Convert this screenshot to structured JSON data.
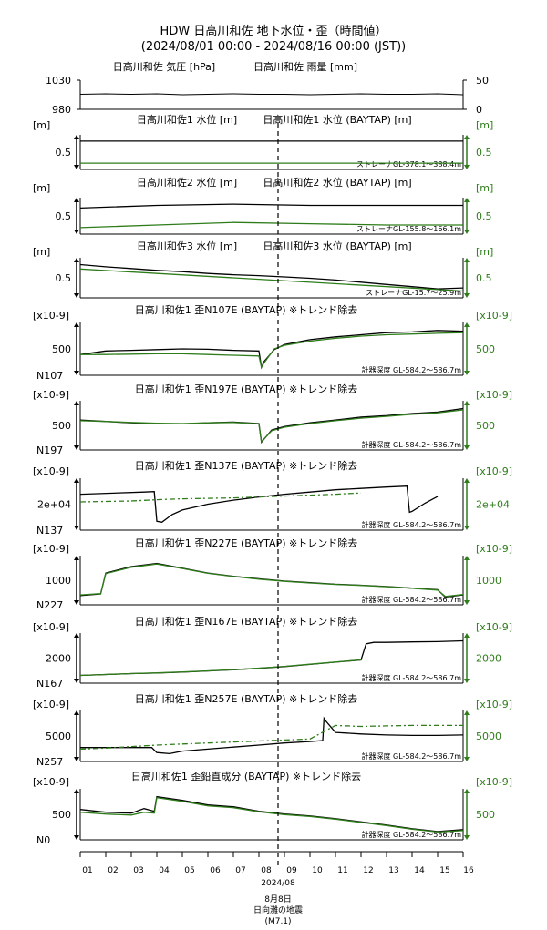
{
  "title_line1": "HDW 日高川和佐 地下水位・歪（時間値）",
  "title_line2": "(2024/08/01 00:00 - 2024/08/16 00:00 (JST))",
  "colors": {
    "observed": "#000000",
    "baytap": "#2e7d1a",
    "marker": "#000000"
  },
  "event": {
    "date_label": "8月8日",
    "name": "日向灘の地震",
    "magnitude": "(M7.1)",
    "month_label": "2024/08"
  },
  "x_axis": {
    "ticks": [
      "01",
      "02",
      "03",
      "04",
      "05",
      "06",
      "07",
      "08",
      "09",
      "10",
      "11",
      "12",
      "13",
      "14",
      "15",
      "16"
    ]
  },
  "chart_data": [
    {
      "type": "line",
      "title_left": "日高川和佐 気圧 [hPa]",
      "title_right": "日高川和佐 雨量 [mm]",
      "left_ticks": [
        "1030",
        "980"
      ],
      "right_ticks": [
        "50",
        "0"
      ],
      "ylim": [
        980,
        1030
      ],
      "series": [
        {
          "name": "日高川和佐 気圧 [hPa]",
          "kind": "pressure",
          "days": [
            0,
            1,
            2,
            3,
            4,
            5,
            6,
            7,
            8,
            9,
            10,
            11,
            12,
            13,
            14,
            15
          ],
          "values": [
            1006,
            1007,
            1006,
            1007,
            1005,
            1006,
            1007,
            1006,
            1006,
            1005,
            1006,
            1007,
            1006,
            1006,
            1007,
            1005
          ]
        }
      ]
    },
    {
      "type": "line",
      "title_left": "日高川和佐1 水位 [m]",
      "title_right": "日高川和佐1 水位 (BAYTAP) [m]",
      "left_unit": "[m]",
      "right_unit": "[m]",
      "left_tick": "0.5",
      "right_tick": "0.5",
      "note": "ストレーナGL-378.1～388.4m",
      "series": [
        {
          "kind": "observed",
          "days": [
            0,
            15
          ],
          "values": [
            0.58,
            0.58
          ]
        },
        {
          "kind": "baytap",
          "days": [
            0,
            15
          ],
          "values": [
            0.47,
            0.47
          ]
        }
      ]
    },
    {
      "type": "line",
      "title_left": "日高川和佐2 水位 [m]",
      "title_right": "日高川和佐2 水位 (BAYTAP) [m]",
      "left_unit": "[m]",
      "right_unit": "[m]",
      "left_tick": "0.5",
      "right_tick": "0.5",
      "note": "ストレーナGL-155.8～166.1m",
      "series": [
        {
          "kind": "observed",
          "days": [
            0,
            3,
            6,
            9,
            12,
            15
          ],
          "values": [
            0.58,
            0.6,
            0.61,
            0.6,
            0.6,
            0.6
          ]
        },
        {
          "kind": "baytap",
          "days": [
            0,
            3,
            6,
            9,
            12,
            15
          ],
          "values": [
            0.43,
            0.45,
            0.47,
            0.46,
            0.45,
            0.45
          ]
        }
      ]
    },
    {
      "type": "line",
      "title_left": "日高川和佐3 水位 [m]",
      "title_right": "日高川和佐3 水位 (BAYTAP) [m]",
      "left_unit": "[m]",
      "right_unit": "[m]",
      "left_tick": "0.5",
      "right_tick": "0.5",
      "note": "ストレーナGL-15.7～25.9m",
      "series": [
        {
          "kind": "observed",
          "days": [
            0,
            1,
            2,
            3,
            4,
            5,
            6,
            7,
            8,
            9,
            10,
            11,
            12,
            13,
            14,
            15
          ],
          "values": [
            0.95,
            0.9,
            0.86,
            0.82,
            0.79,
            0.75,
            0.72,
            0.7,
            0.67,
            0.64,
            0.6,
            0.55,
            0.5,
            0.45,
            0.4,
            0.42
          ]
        },
        {
          "kind": "baytap",
          "days": [
            0,
            15
          ],
          "values": [
            0.85,
            0.35
          ]
        }
      ]
    },
    {
      "type": "line",
      "title_left": "日高川和佐1 歪N107E (BAYTAP) ※トレンド除去",
      "left_unit": "[x10-9]",
      "right_unit": "[x10-9]",
      "left_tick": "500",
      "right_tick": "500",
      "left_foot": "N107",
      "note": "計器深度 GL-584.2～586.7m",
      "series": [
        {
          "kind": "observed",
          "days": [
            0,
            1,
            2,
            3,
            4,
            5,
            6,
            7,
            7.1,
            7.2,
            7.6,
            8,
            9,
            10,
            11,
            12,
            13,
            14,
            15
          ],
          "values": [
            480,
            530,
            540,
            550,
            560,
            555,
            540,
            530,
            300,
            380,
            550,
            620,
            690,
            730,
            760,
            790,
            800,
            820,
            810
          ]
        },
        {
          "kind": "baytap",
          "days": [
            0,
            1,
            2,
            3,
            4,
            5,
            6,
            7,
            7.1,
            7.2,
            7.6,
            8,
            9,
            10,
            11,
            12,
            13,
            14,
            15
          ],
          "values": [
            480,
            480,
            485,
            490,
            490,
            480,
            470,
            460,
            300,
            360,
            560,
            610,
            670,
            710,
            740,
            760,
            770,
            780,
            790
          ]
        }
      ]
    },
    {
      "type": "line",
      "title_left": "日高川和佐1 歪N197E (BAYTAP) ※トレンド除去",
      "left_unit": "[x10-9]",
      "right_unit": "[x10-9]",
      "left_tick": "500",
      "right_tick": "500",
      "left_foot": "N197",
      "note": "計器深度 GL-584.2～586.7m",
      "series": [
        {
          "kind": "observed",
          "days": [
            0,
            1,
            2,
            3,
            4,
            5,
            6,
            7,
            7.1,
            7.5,
            8,
            9,
            10,
            11,
            12,
            13,
            14,
            15
          ],
          "values": [
            560,
            540,
            520,
            510,
            505,
            520,
            530,
            510,
            250,
            420,
            470,
            520,
            560,
            600,
            620,
            650,
            670,
            720
          ]
        },
        {
          "kind": "baytap",
          "days": [
            0,
            1,
            2,
            3,
            4,
            5,
            6,
            7,
            7.1,
            7.5,
            8,
            9,
            10,
            11,
            12,
            13,
            14,
            15
          ],
          "values": [
            550,
            540,
            525,
            515,
            510,
            520,
            525,
            505,
            260,
            410,
            460,
            510,
            550,
            585,
            610,
            640,
            660,
            700
          ]
        }
      ]
    },
    {
      "type": "line",
      "title_left": "日高川和佐1 歪N137E (BAYTAP) ※トレンド除去",
      "left_unit": "[x10-9]",
      "right_unit": "[x10-9]",
      "left_tick": "2e+04",
      "right_tick": "2e+04",
      "left_foot": "N137",
      "note": "計器深度 GL-584.2～586.7m",
      "series": [
        {
          "kind": "observed",
          "days": [
            0,
            2.5,
            2.9,
            3,
            3.2,
            3.6,
            4,
            5,
            6,
            7,
            8,
            9,
            10,
            11,
            12,
            12.8,
            12.9,
            13,
            13.5,
            14
          ],
          "values": [
            20000,
            20500,
            20600,
            14000,
            13800,
            15500,
            16500,
            17800,
            18700,
            19400,
            20000,
            20500,
            21000,
            21300,
            21600,
            21800,
            16000,
            16200,
            18000,
            19500
          ]
        },
        {
          "kind": "baytap",
          "days": [
            0,
            1,
            2,
            3,
            4,
            5,
            6,
            7,
            8,
            9,
            10,
            11
          ],
          "values": [
            18300,
            18400,
            18500,
            18800,
            19000,
            19100,
            19200,
            19400,
            19600,
            19800,
            20000,
            20300
          ]
        }
      ]
    },
    {
      "type": "line",
      "title_left": "日高川和佐1 歪N227E (BAYTAP) ※トレンド除去",
      "left_unit": "[x10-9]",
      "right_unit": "[x10-9]",
      "left_tick": "1000",
      "right_tick": "1000",
      "left_foot": "N227",
      "note": "計器深度 GL-584.2～586.7m",
      "series": [
        {
          "kind": "observed",
          "days": [
            0,
            0.8,
            1,
            2,
            3,
            4,
            5,
            6,
            7,
            8,
            9,
            10,
            11,
            12,
            13,
            14,
            14.3,
            15
          ],
          "values": [
            200,
            250,
            900,
            1100,
            1200,
            1050,
            900,
            800,
            720,
            650,
            600,
            550,
            520,
            480,
            430,
            380,
            150,
            220
          ]
        },
        {
          "kind": "baytap",
          "days": [
            0,
            0.8,
            1,
            2,
            3,
            4,
            5,
            6,
            7,
            8,
            9,
            10,
            11,
            12,
            13,
            14,
            14.3,
            15
          ],
          "values": [
            220,
            260,
            880,
            1080,
            1180,
            1040,
            890,
            790,
            710,
            640,
            590,
            545,
            515,
            475,
            425,
            370,
            170,
            230
          ]
        }
      ]
    },
    {
      "type": "line",
      "title_left": "日高川和佐1 歪N167E (BAYTAP) ※トレンド除去",
      "left_unit": "[x10-9]",
      "right_unit": "[x10-9]",
      "left_tick": "2000",
      "right_tick": "2000",
      "left_foot": "N167",
      "note": "計器深度 GL-584.2～586.7m",
      "series": [
        {
          "kind": "observed",
          "days": [
            0,
            1,
            2,
            3,
            4,
            5,
            6,
            7,
            8,
            9,
            10,
            11,
            11.2,
            11.5,
            12,
            13,
            14,
            15
          ],
          "values": [
            500,
            560,
            620,
            660,
            720,
            800,
            880,
            980,
            1100,
            1250,
            1400,
            1550,
            2650,
            2750,
            2750,
            2780,
            2800,
            2850
          ]
        },
        {
          "kind": "baytap",
          "days": [
            0,
            1,
            2,
            3,
            4,
            5,
            6,
            7,
            8,
            9,
            10,
            11
          ],
          "values": [
            500,
            560,
            620,
            670,
            730,
            810,
            890,
            990,
            1110,
            1260,
            1410,
            1560
          ]
        }
      ]
    },
    {
      "type": "line",
      "title_left": "日高川和佐1 歪N257E (BAYTAP) ※トレンド除去",
      "left_unit": "[x10-9]",
      "right_unit": "[x10-9]",
      "left_tick": "5000",
      "right_tick": "5000",
      "left_foot": "N257",
      "note": "計器深度 GL-584.2～586.7m",
      "series": [
        {
          "kind": "observed",
          "days": [
            0,
            2.8,
            3,
            3.5,
            4,
            5,
            6,
            7,
            8,
            9,
            9.5,
            9.55,
            9.6,
            10,
            11,
            12,
            13,
            14,
            15
          ],
          "values": [
            3900,
            3900,
            3400,
            3300,
            3550,
            3750,
            3950,
            4150,
            4350,
            4500,
            4600,
            6800,
            6600,
            5400,
            5250,
            5150,
            5100,
            5100,
            5150
          ]
        },
        {
          "kind": "baytap",
          "days": [
            0,
            1,
            2,
            3,
            4,
            5,
            6,
            7,
            8,
            9,
            10,
            11,
            12,
            13,
            14,
            15
          ],
          "values": [
            3750,
            3850,
            4000,
            4150,
            4250,
            4350,
            4450,
            4550,
            4650,
            4750,
            6100,
            6000,
            6050,
            6100,
            6100,
            6100
          ]
        }
      ]
    },
    {
      "type": "line",
      "title_left": "日高川和佐1 歪鉛直成分 (BAYTAP) ※トレンド除去",
      "left_unit": "[x10-9]",
      "right_unit": "[x10-9]",
      "left_tick": "500",
      "right_tick": "500",
      "left_foot": "N0",
      "note": "計器深度 GL-584.2～586.7m",
      "series": [
        {
          "kind": "observed",
          "days": [
            0,
            1,
            2,
            2.5,
            2.9,
            3,
            4,
            5,
            6,
            7,
            8,
            9,
            10,
            11,
            12,
            13,
            14,
            15
          ],
          "values": [
            620,
            560,
            540,
            640,
            580,
            900,
            820,
            720,
            680,
            580,
            520,
            480,
            420,
            350,
            280,
            200,
            140,
            180
          ]
        },
        {
          "kind": "baytap",
          "days": [
            0,
            1,
            2,
            2.5,
            2.9,
            3,
            4,
            5,
            6,
            7,
            8,
            9,
            10,
            11,
            12,
            13,
            14,
            15
          ],
          "values": [
            560,
            520,
            500,
            560,
            540,
            880,
            800,
            700,
            660,
            570,
            510,
            470,
            410,
            340,
            270,
            190,
            130,
            160
          ]
        }
      ]
    }
  ]
}
